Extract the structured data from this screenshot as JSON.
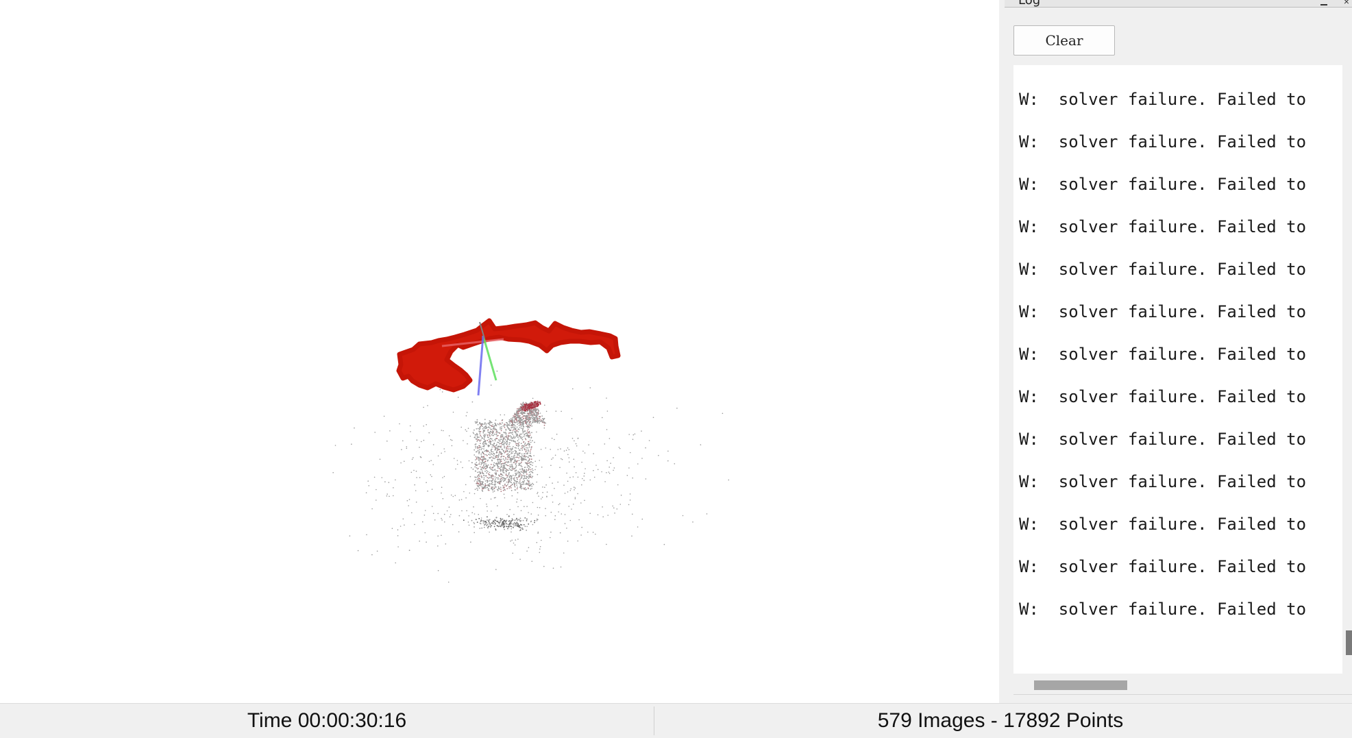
{
  "log_panel": {
    "title": "Log",
    "clear_label": "Clear",
    "lines": [
      "W:  solver failure. Failed to",
      "W:  solver failure. Failed to",
      "W:  solver failure. Failed to",
      "W:  solver failure. Failed to",
      "W:  solver failure. Failed to",
      "W:  solver failure. Failed to",
      "W:  solver failure. Failed to",
      "W:  solver failure. Failed to",
      "W:  solver failure. Failed to",
      "W:  solver failure. Failed to",
      "W:  solver failure. Failed to",
      "W:  solver failure. Failed to",
      "W:  solver failure. Failed to"
    ]
  },
  "status_bar": {
    "time_text": "Time 00:00:30:16",
    "stats_text": "579 Images - 17892 Points"
  },
  "viewport": {
    "camera_trajectory_color": "#d11a0a",
    "axis_colors": {
      "x": "#e8666a",
      "y": "#5ee05e",
      "z": "#6b6bf0"
    },
    "point_cloud_colors": [
      "#9a9a9a",
      "#b07a80",
      "#a83040",
      "#606060"
    ]
  }
}
